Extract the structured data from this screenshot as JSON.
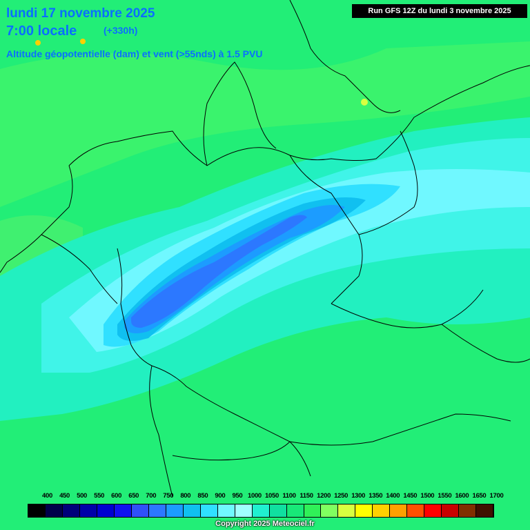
{
  "header": {
    "date": "lundi 17 novembre 2025",
    "time": "7:00 locale",
    "offset": "(+330h)",
    "description": "Altitude géopotentielle (dam) et vent (>55nds) à 1.5 PVU",
    "run": "Run GFS 12Z du lundi 3 novembre 2025"
  },
  "legend": {
    "labels": [
      "400",
      "450",
      "500",
      "550",
      "600",
      "650",
      "700",
      "750",
      "800",
      "850",
      "900",
      "950",
      "1000",
      "1050",
      "1100",
      "1150",
      "1200",
      "1250",
      "1300",
      "1350",
      "1400",
      "1450",
      "1500",
      "1550",
      "1600",
      "1650",
      "1700"
    ],
    "colors": [
      "#000000",
      "#00004a",
      "#00007a",
      "#0000a8",
      "#0000d0",
      "#1010f0",
      "#3050f8",
      "#2c78ff",
      "#1c9cff",
      "#10c0f0",
      "#30e0ff",
      "#70f8ff",
      "#a0ffff",
      "#20f0d0",
      "#10e0a0",
      "#18e878",
      "#30f058",
      "#80ff60",
      "#d8ff40",
      "#ffff00",
      "#ffd000",
      "#ffa000",
      "#ff5000",
      "#ff0000",
      "#c80000",
      "#803000",
      "#401000"
    ]
  },
  "copyright": "Copyright 2025 Meteociel.fr"
}
